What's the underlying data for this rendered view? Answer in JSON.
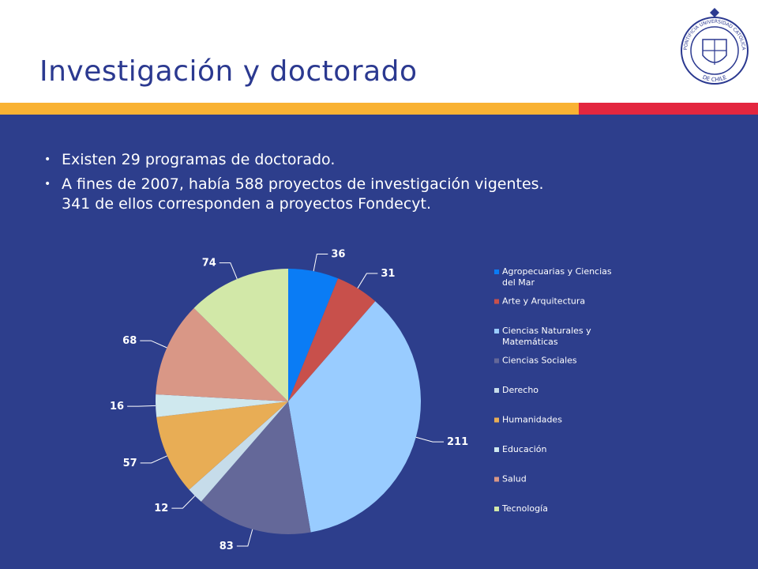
{
  "slide": {
    "title": "Investigación y doctorado",
    "bullets": [
      {
        "lines": [
          "Existen 29 programas de doctorado."
        ]
      },
      {
        "lines": [
          "A fines de 2007, había 588 proyectos de investigación vigentes.",
          "341 de ellos corresponden a proyectos Fondecyt."
        ]
      }
    ],
    "bullet_marker": "•",
    "logo": {
      "icon": "university-seal-icon",
      "text_top": "PONTIFICIA UNIVERSIDAD CATOLICA",
      "text_bottom": "DE CHILE"
    },
    "colors": {
      "background": "#2d3e8c",
      "title": "#2b3990",
      "stripe_orange": "#f9b233",
      "stripe_red": "#e3263f"
    }
  },
  "chart_data": {
    "type": "pie",
    "title": "",
    "categories": [
      "Agropecuarias y Ciencias del Mar",
      "Arte y Arquitectura",
      "Ciencias Naturales y Matemáticas",
      "Ciencias Sociales",
      "Derecho",
      "Humanidades",
      "Educación",
      "Salud",
      "Tecnología"
    ],
    "values": [
      36,
      31,
      211,
      83,
      12,
      57,
      16,
      68,
      74
    ],
    "colors": [
      "#0a7cf5",
      "#c8504b",
      "#99ccff",
      "#646899",
      "#c6dcea",
      "#e8ad55",
      "#cfe8ee",
      "#d99786",
      "#d2e8a8"
    ],
    "legend": {
      "position": "right",
      "entries": [
        [
          "Agropecuarias y Ciencias",
          "del Mar"
        ],
        [
          "Arte y Arquitectura"
        ],
        [
          "Ciencias Naturales y",
          "Matemáticas"
        ],
        [
          "Ciencias Sociales"
        ],
        [
          "Derecho"
        ],
        [
          "Humanidades"
        ],
        [
          "Educación"
        ],
        [
          "Salud"
        ],
        [
          "Tecnología"
        ]
      ]
    },
    "start_angle_deg": 0,
    "direction": "clockwise"
  }
}
